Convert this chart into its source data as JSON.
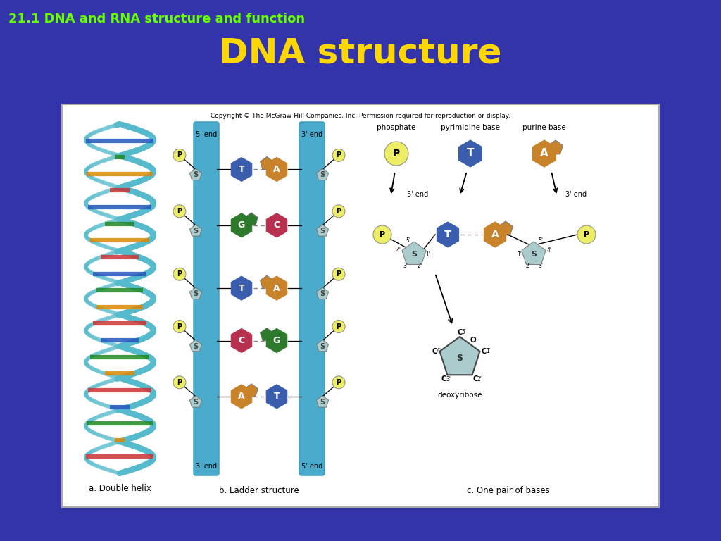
{
  "bg_color": "#3333AA",
  "title": "DNA structure",
  "title_color": "#FFD700",
  "title_fontsize": 36,
  "subtitle": "21.1 DNA and RNA structure and function",
  "subtitle_color": "#66FF00",
  "subtitle_fontsize": 13,
  "copyright_text": "Copyright © The McGraw-Hill Companies, Inc. Permission required for reproduction or display.",
  "box_a_label": "a. Double helix",
  "box_b_label": "b. Ladder structure",
  "box_c_label": "c. One pair of bases",
  "T_color": "#3A5DAE",
  "A_color": "#C8822A",
  "G_color": "#2D7A2D",
  "C_color": "#B83050",
  "P_color": "#EEEE66",
  "S_color": "#AACCCC",
  "helix_strand_color": "#55BBCC",
  "ladder_col_color": "#4AABCC",
  "white_bg": "#FFFFFF"
}
